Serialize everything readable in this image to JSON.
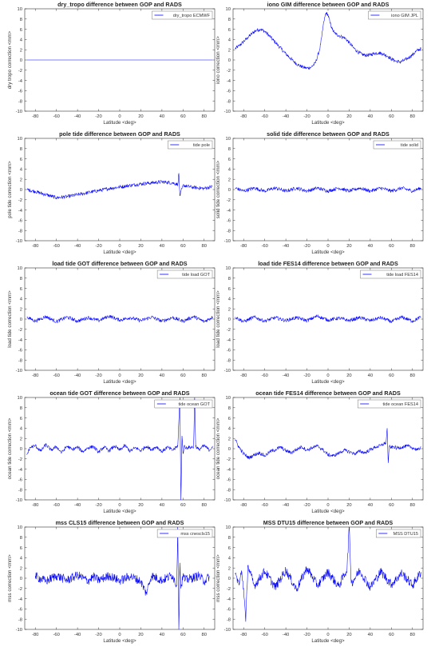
{
  "figure": {
    "xlabel": "Latitude <deg>"
  },
  "chart_data": [
    {
      "type": "line",
      "title": "dry_tropo difference between GOP and RADS",
      "xlabel": "Latitude <deg>",
      "ylabel": "dry tropo correction <mm>",
      "xlim": [
        -90,
        90
      ],
      "ylim": [
        -10,
        10
      ],
      "xticks": [
        -80,
        -60,
        -40,
        -20,
        0,
        20,
        40,
        60,
        80
      ],
      "yticks": [
        -10,
        -8,
        -6,
        -4,
        -2,
        0,
        2,
        4,
        6,
        8,
        10
      ],
      "grid": false,
      "legend_position": "top-right",
      "series": [
        {
          "name": "dry_tropo ECMWF",
          "color": "#0000ff",
          "x": [
            -88,
            -40,
            0,
            40,
            88
          ],
          "y": [
            0,
            0,
            0,
            0,
            0
          ]
        }
      ]
    },
    {
      "type": "line",
      "title": "iono GIM difference between GOP and RADS",
      "xlabel": "Latitude <deg>",
      "ylabel": "iono correction <mm>",
      "xlim": [
        -90,
        90
      ],
      "ylim": [
        -10,
        10
      ],
      "xticks": [
        -80,
        -60,
        -40,
        -20,
        0,
        20,
        40,
        60,
        80
      ],
      "yticks": [
        -10,
        -8,
        -6,
        -4,
        -2,
        0,
        2,
        4,
        6,
        8,
        10
      ],
      "grid": false,
      "legend_position": "top-right",
      "series": [
        {
          "name": "iono GIM JPL",
          "color": "#0000ff",
          "x": [
            -88,
            -84,
            -80,
            -76,
            -72,
            -68,
            -64,
            -60,
            -56,
            -52,
            -48,
            -44,
            -40,
            -36,
            -32,
            -28,
            -24,
            -20,
            -16,
            -12,
            -8,
            -6,
            -4,
            -2,
            0,
            2,
            4,
            6,
            8,
            10,
            12,
            16,
            20,
            24,
            28,
            32,
            36,
            40,
            44,
            48,
            52,
            56,
            60,
            64,
            68,
            72,
            76,
            80,
            84,
            88
          ],
          "y": [
            2.2,
            2.8,
            3.6,
            4.4,
            5.2,
            5.8,
            6.0,
            5.6,
            4.8,
            3.9,
            3.0,
            2.1,
            1.2,
            0.4,
            -0.4,
            -1.0,
            -1.4,
            -1.6,
            -1.4,
            -0.6,
            2.0,
            4.5,
            7.5,
            9.2,
            8.8,
            7.2,
            6.0,
            5.3,
            5.0,
            4.8,
            4.6,
            4.3,
            3.4,
            2.4,
            1.6,
            1.1,
            0.9,
            1.0,
            1.3,
            1.4,
            1.2,
            0.8,
            0.2,
            -0.2,
            -0.4,
            -0.1,
            0.4,
            1.0,
            1.8,
            2.2
          ]
        }
      ]
    },
    {
      "type": "line",
      "title": "pole tide difference between GOP and RADS",
      "xlabel": "Latitude <deg>",
      "ylabel": "pole tide correction <mm>",
      "xlim": [
        -90,
        90
      ],
      "ylim": [
        -10,
        10
      ],
      "xticks": [
        -80,
        -60,
        -40,
        -20,
        0,
        20,
        40,
        60,
        80
      ],
      "yticks": [
        -10,
        -8,
        -6,
        -4,
        -2,
        0,
        2,
        4,
        6,
        8,
        10
      ],
      "grid": false,
      "legend_position": "top-right",
      "series": [
        {
          "name": "tide pole",
          "color": "#0000ff",
          "x": [
            -88,
            -80,
            -70,
            -60,
            -50,
            -40,
            -30,
            -20,
            -10,
            0,
            10,
            20,
            30,
            40,
            50,
            55,
            56,
            57,
            60,
            70,
            80,
            88
          ],
          "y": [
            0,
            -0.4,
            -1.0,
            -1.6,
            -1.4,
            -1.0,
            -0.6,
            -0.2,
            0.2,
            0.5,
            0.8,
            1.1,
            1.3,
            1.5,
            1.3,
            1.0,
            3.2,
            -1.2,
            0.8,
            0.4,
            0.2,
            0.6
          ]
        }
      ]
    },
    {
      "type": "line",
      "title": "solid tide difference between GOP and RADS",
      "xlabel": "Latitude <deg>",
      "ylabel": "solid tide correction <mm>",
      "xlim": [
        -90,
        90
      ],
      "ylim": [
        -10,
        10
      ],
      "xticks": [
        -80,
        -60,
        -40,
        -20,
        0,
        20,
        40,
        60,
        80
      ],
      "yticks": [
        -10,
        -8,
        -6,
        -4,
        -2,
        0,
        2,
        4,
        6,
        8,
        10
      ],
      "grid": false,
      "legend_position": "top-right",
      "series": [
        {
          "name": "tide solid",
          "color": "#0000ff",
          "x": [
            -88,
            -80,
            -70,
            -60,
            -50,
            -40,
            -30,
            -20,
            -10,
            0,
            10,
            20,
            30,
            40,
            50,
            60,
            70,
            80,
            88
          ],
          "y": [
            0.3,
            -0.3,
            0.3,
            -0.3,
            0.3,
            -0.3,
            0.3,
            -0.3,
            0.3,
            -0.3,
            0.3,
            -0.3,
            0.3,
            -0.3,
            0.3,
            -0.3,
            0.3,
            -0.3,
            0.3
          ]
        }
      ]
    },
    {
      "type": "line",
      "title": "load tide GOT difference between GOP and RADS",
      "xlabel": "Latitude <deg>",
      "ylabel": "load tide correction <mm>",
      "xlim": [
        -90,
        90
      ],
      "ylim": [
        -10,
        10
      ],
      "xticks": [
        -80,
        -60,
        -40,
        -20,
        0,
        20,
        40,
        60,
        80
      ],
      "yticks": [
        -10,
        -8,
        -6,
        -4,
        -2,
        0,
        2,
        4,
        6,
        8,
        10
      ],
      "grid": false,
      "legend_position": "top-right",
      "series": [
        {
          "name": "tide load GOT",
          "color": "#0000ff",
          "x": [
            -88,
            -80,
            -70,
            -60,
            -50,
            -40,
            -30,
            -20,
            -10,
            0,
            10,
            20,
            30,
            40,
            50,
            60,
            70,
            80,
            88
          ],
          "y": [
            0.4,
            -0.4,
            0.5,
            -0.5,
            0.4,
            -0.4,
            0.3,
            -0.3,
            0.6,
            -0.2,
            0.3,
            -0.3,
            0.4,
            -0.4,
            0.3,
            -0.4,
            0.5,
            -0.5,
            0.4
          ]
        }
      ]
    },
    {
      "type": "line",
      "title": "load tide FES14 difference between GOP and RADS",
      "xlabel": "Latitude <deg>",
      "ylabel": "load tide correction <mm>",
      "xlim": [
        -90,
        90
      ],
      "ylim": [
        -10,
        10
      ],
      "xticks": [
        -80,
        -60,
        -40,
        -20,
        0,
        20,
        40,
        60,
        80
      ],
      "yticks": [
        -10,
        -8,
        -6,
        -4,
        -2,
        0,
        2,
        4,
        6,
        8,
        10
      ],
      "grid": false,
      "legend_position": "top-right",
      "series": [
        {
          "name": "tide load FES14",
          "color": "#0000ff",
          "x": [
            -88,
            -80,
            -70,
            -60,
            -50,
            -40,
            -30,
            -20,
            -10,
            0,
            10,
            20,
            30,
            40,
            50,
            60,
            70,
            80,
            88
          ],
          "y": [
            0.4,
            -0.5,
            0.4,
            -0.4,
            0.3,
            -0.3,
            0.3,
            -0.3,
            0.6,
            -0.2,
            0.2,
            -0.3,
            0.3,
            -0.3,
            0.3,
            -0.5,
            0.4,
            -0.4,
            0.4
          ]
        }
      ]
    },
    {
      "type": "line",
      "title": "ocean tide GOT difference between GOP and RADS",
      "xlabel": "Latitude <deg>",
      "ylabel": "ocean tide correction <mm>",
      "xlim": [
        -90,
        90
      ],
      "ylim": [
        -10,
        10
      ],
      "xticks": [
        -80,
        -60,
        -40,
        -20,
        0,
        20,
        40,
        60,
        80
      ],
      "yticks": [
        -10,
        -8,
        -6,
        -4,
        -2,
        0,
        2,
        4,
        6,
        8,
        10
      ],
      "grid": false,
      "legend_position": "top-right",
      "series": [
        {
          "name": "tide ocean GOT",
          "color": "#0000ff",
          "x": [
            -88,
            -85,
            -80,
            -75,
            -70,
            -65,
            -60,
            -55,
            -50,
            -45,
            -40,
            -35,
            -30,
            -25,
            -20,
            -15,
            -10,
            -5,
            0,
            5,
            10,
            15,
            20,
            25,
            30,
            35,
            40,
            45,
            50,
            55,
            57,
            58,
            59,
            60,
            61,
            62,
            70,
            71,
            72,
            75,
            80,
            85,
            88
          ],
          "y": [
            -1.2,
            0.2,
            0.6,
            -0.5,
            0.8,
            -0.3,
            0.4,
            -0.8,
            0.5,
            -0.2,
            0.3,
            -0.6,
            0.2,
            0.4,
            -0.7,
            0.3,
            -0.4,
            0.5,
            -0.3,
            0.6,
            -0.5,
            0.2,
            -0.4,
            0.5,
            -0.2,
            0.4,
            -0.6,
            0.3,
            -0.3,
            0.5,
            10,
            -10,
            2.5,
            -1.0,
            0.5,
            0.2,
            0.3,
            10,
            0.4,
            -0.2,
            0.6,
            -0.3,
            0.5
          ]
        }
      ]
    },
    {
      "type": "line",
      "title": "ocean tide FES14 difference between GOP and RADS",
      "xlabel": "Latitude <deg>",
      "ylabel": "ocean tide correction <mm>",
      "xlim": [
        -90,
        90
      ],
      "ylim": [
        -10,
        10
      ],
      "xticks": [
        -80,
        -60,
        -40,
        -20,
        0,
        20,
        40,
        60,
        80
      ],
      "yticks": [
        -10,
        -8,
        -6,
        -4,
        -2,
        0,
        2,
        4,
        6,
        8,
        10
      ],
      "grid": false,
      "legend_position": "top-right",
      "series": [
        {
          "name": "tide ocean FES14",
          "color": "#0000ff",
          "x": [
            -88,
            -85,
            -80,
            -75,
            -70,
            -65,
            -60,
            -55,
            -50,
            -45,
            -40,
            -35,
            -30,
            -25,
            -20,
            -15,
            -10,
            -5,
            0,
            5,
            10,
            15,
            20,
            25,
            30,
            35,
            40,
            45,
            50,
            55,
            56,
            57,
            58,
            60,
            62,
            65,
            70,
            75,
            80,
            85,
            88
          ],
          "y": [
            1.8,
            0.5,
            -1.0,
            -1.8,
            -1.2,
            -0.8,
            -1.4,
            -0.6,
            -0.2,
            0.3,
            -0.4,
            -0.8,
            -0.2,
            0.4,
            -0.3,
            0.2,
            0.5,
            -0.2,
            -1.2,
            -1.4,
            -0.9,
            -0.3,
            -0.6,
            -1.0,
            -0.5,
            -0.8,
            -0.2,
            0.3,
            0.6,
            1.2,
            4.0,
            -2.8,
            0.4,
            0.2,
            0.4,
            0.1,
            0.3,
            0.5,
            0.2,
            -0.3,
            0.4
          ]
        }
      ]
    },
    {
      "type": "line",
      "title": "mss CLS15 difference between GOP and RADS",
      "xlabel": "Latitude <deg>",
      "ylabel": "mss correction <mm>",
      "xlim": [
        -90,
        90
      ],
      "ylim": [
        -10,
        10
      ],
      "xticks": [
        -80,
        -60,
        -40,
        -20,
        0,
        20,
        40,
        60,
        80
      ],
      "yticks": [
        -10,
        -8,
        -6,
        -4,
        -2,
        0,
        2,
        4,
        6,
        8,
        10
      ],
      "grid": false,
      "legend_position": "top-right",
      "series": [
        {
          "name": "mss cnescls15",
          "color": "#0000ff",
          "x": [
            -80,
            -70,
            -60,
            -50,
            -40,
            -30,
            -25,
            -20,
            -10,
            0,
            10,
            20,
            25,
            30,
            40,
            50,
            54,
            55,
            56,
            57,
            58,
            60,
            62,
            75,
            80,
            85
          ],
          "y": [
            0.4,
            -0.6,
            0.5,
            -0.4,
            0.6,
            -0.5,
            0.3,
            -0.4,
            0.5,
            -0.5,
            0.4,
            -0.6,
            -3.0,
            0.5,
            -0.4,
            0.6,
            -1.5,
            10,
            -10,
            3.0,
            -2.0,
            0.6,
            -0.4,
            0.5,
            -0.6,
            0.4
          ]
        }
      ]
    },
    {
      "type": "line",
      "title": "MSS DTU15 difference between GOP and RADS",
      "xlabel": "Latitude <deg>",
      "ylabel": "mss correction <mm>",
      "xlim": [
        -90,
        90
      ],
      "ylim": [
        -10,
        10
      ],
      "xticks": [
        -80,
        -60,
        -40,
        -20,
        0,
        20,
        40,
        60,
        80
      ],
      "yticks": [
        -10,
        -8,
        -6,
        -4,
        -2,
        0,
        2,
        4,
        6,
        8,
        10
      ],
      "grid": false,
      "legend_position": "top-right",
      "series": [
        {
          "name": "MSS DTU15",
          "color": "#0000ff",
          "x": [
            -88,
            -84,
            -82,
            -80,
            -78,
            -76,
            -70,
            -60,
            -50,
            -40,
            -30,
            -20,
            -10,
            0,
            10,
            18,
            20,
            22,
            30,
            40,
            50,
            60,
            70,
            80,
            88
          ],
          "y": [
            0.8,
            -1.2,
            1.5,
            -2.0,
            -8.5,
            2.5,
            -1.5,
            1.4,
            -1.8,
            1.6,
            -2.2,
            2.0,
            -1.4,
            1.2,
            -1.6,
            1.8,
            10,
            -1.0,
            1.5,
            -1.8,
            1.3,
            -1.2,
            1.0,
            -1.4,
            1.2
          ]
        }
      ]
    }
  ]
}
